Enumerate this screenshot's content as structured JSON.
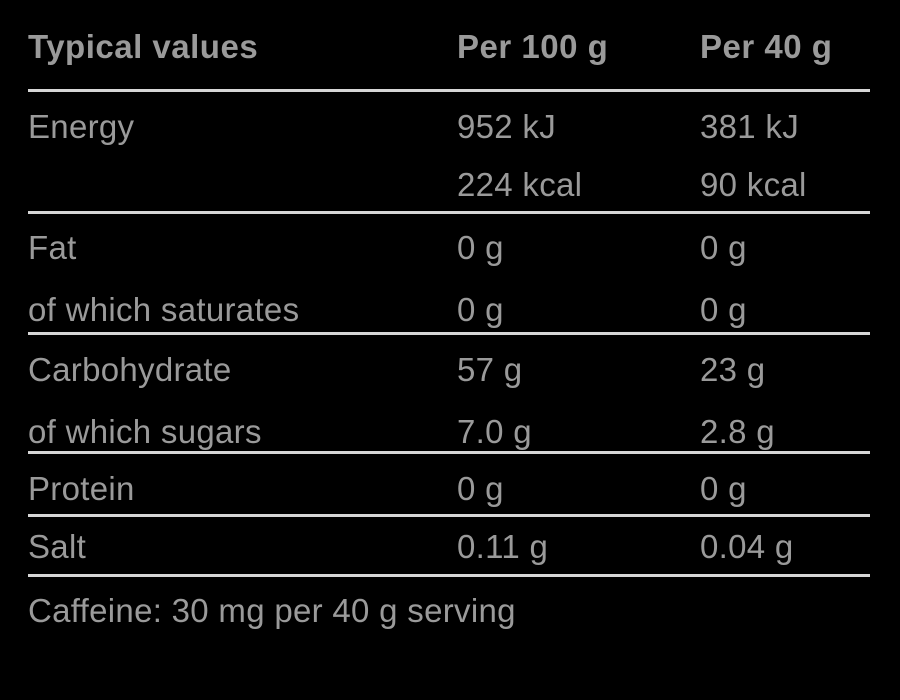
{
  "colors": {
    "background": "#000000",
    "text": "#9a9a9a",
    "rule": "#d6d6d6"
  },
  "table": {
    "header": {
      "typical_values": "Typical values",
      "per_100g": "Per 100 g",
      "per_40g": "Per 40 g"
    },
    "energy": {
      "label": "Energy",
      "per100_kj": "952 kJ",
      "per100_kcal": "224 kcal",
      "per40_kj": "381 kJ",
      "per40_kcal": "90 kcal"
    },
    "fat": {
      "label": "Fat",
      "per100": "0 g",
      "per40": "0 g"
    },
    "saturates": {
      "label": "of which saturates",
      "per100": "0 g",
      "per40": "0 g"
    },
    "carbohydrate": {
      "label": "Carbohydrate",
      "per100": "57 g",
      "per40": "23 g"
    },
    "sugars": {
      "label": "of which sugars",
      "per100": "7.0 g",
      "per40": "2.8 g"
    },
    "protein": {
      "label": "Protein",
      "per100": "0 g",
      "per40": "0 g"
    },
    "salt": {
      "label": "Salt",
      "per100": "0.11 g",
      "per40": "0.04 g"
    },
    "footnote": "Caffeine: 30 mg per 40 g serving"
  }
}
